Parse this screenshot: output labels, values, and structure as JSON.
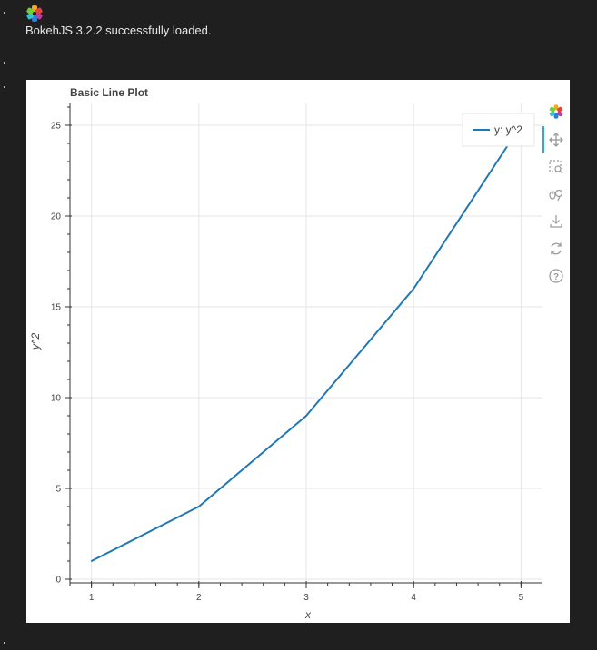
{
  "output": {
    "loaded_message": "BokehJS 3.2.2 successfully loaded."
  },
  "toolbar": {
    "tools": [
      "bokeh-logo-icon",
      "pan-icon",
      "box-zoom-icon",
      "wheel-zoom-icon",
      "save-icon",
      "reset-icon",
      "help-icon"
    ],
    "active_tool": "pan-icon"
  },
  "chart_data": {
    "type": "line",
    "title": "Basic Line Plot",
    "xlabel": "x",
    "ylabel": "y^2",
    "x": [
      1,
      2,
      3,
      4,
      5
    ],
    "series": [
      {
        "name": "y: y^2",
        "values": [
          1,
          4,
          9,
          16,
          25
        ],
        "color": "#1f77b4"
      }
    ],
    "xlim": [
      0.8,
      5.2
    ],
    "ylim": [
      -0.2,
      26.2
    ],
    "x_ticks": [
      "1",
      "2",
      "3",
      "4",
      "5"
    ],
    "y_ticks": [
      "0",
      "5",
      "10",
      "15",
      "20",
      "25"
    ],
    "grid": true,
    "legend_placement": "top-right"
  }
}
